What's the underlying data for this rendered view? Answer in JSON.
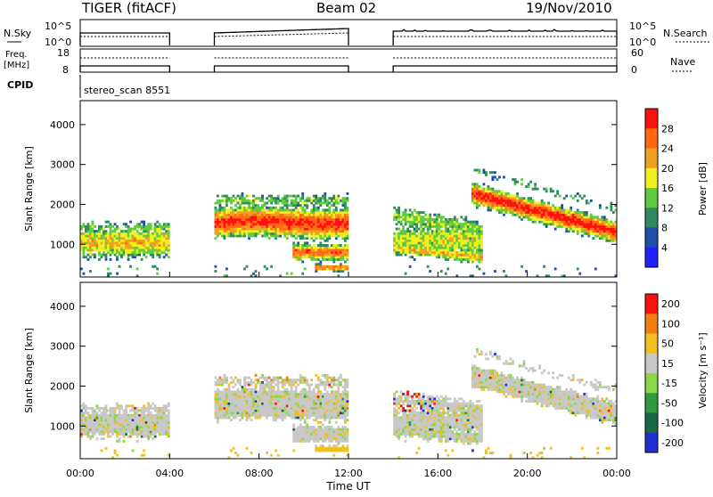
{
  "header": {
    "title": "TIGER (fitACF)",
    "beam": "Beam 02",
    "date": "19/Nov/2010"
  },
  "nsky_panel": {
    "label": "N.Sky",
    "ticks_left": [
      "10^5",
      "10^0"
    ],
    "ticks_right": [
      "10^5",
      "10^0"
    ],
    "right_label": "N.Search",
    "segments": [
      [
        0,
        4
      ],
      [
        6,
        12
      ],
      [
        14,
        24
      ]
    ],
    "sky_level": 0.62,
    "search_level": 0.35
  },
  "freq_panel": {
    "label_top": "Freq.",
    "label_bottom": "[MHz]",
    "ticks_left": [
      "18",
      "8"
    ],
    "ticks_right": [
      "60",
      "0"
    ],
    "right_label": "Nave"
  },
  "cpid": {
    "label": "CPID",
    "text": "stereo_scan 8551"
  },
  "chart_data": [
    {
      "type": "heatmap",
      "name": "power",
      "xlabel": "",
      "ylabel": "Slant Range [km]",
      "xlim": [
        0,
        24
      ],
      "ylim": [
        180,
        4600
      ],
      "yticks": [
        "1000",
        "2000",
        "3000",
        "4000"
      ],
      "colorbar_label": "Power [dB]",
      "colorbar_ticks": [
        "4",
        "8",
        "12",
        "16",
        "20",
        "24",
        "28"
      ],
      "colors": [
        "#1f1fff",
        "#1f4fa8",
        "#2f8a5f",
        "#5fcc3f",
        "#f0f020",
        "#f0a020",
        "#ff6a10",
        "#ff1010"
      ]
    },
    {
      "type": "heatmap",
      "name": "velocity",
      "xlabel": "Time UT",
      "ylabel": "Slant Range [km]",
      "xlim": [
        0,
        24
      ],
      "ylim": [
        180,
        4600
      ],
      "yticks": [
        "1000",
        "2000",
        "3000",
        "4000"
      ],
      "xticks": [
        "00:00",
        "04:00",
        "08:00",
        "12:00",
        "16:00",
        "20:00",
        "00:00"
      ],
      "colorbar_label": "Velocity [m s⁻¹]",
      "colorbar_ticks": [
        "200",
        "100",
        "50",
        "15",
        "-15",
        "-50",
        "-100",
        "-200"
      ],
      "colors": [
        "#1f2fd0",
        "#1a6a4a",
        "#2f9a3f",
        "#8ad84a",
        "#c8c8c8",
        "#f0c020",
        "#f08010",
        "#ff1010"
      ]
    }
  ]
}
